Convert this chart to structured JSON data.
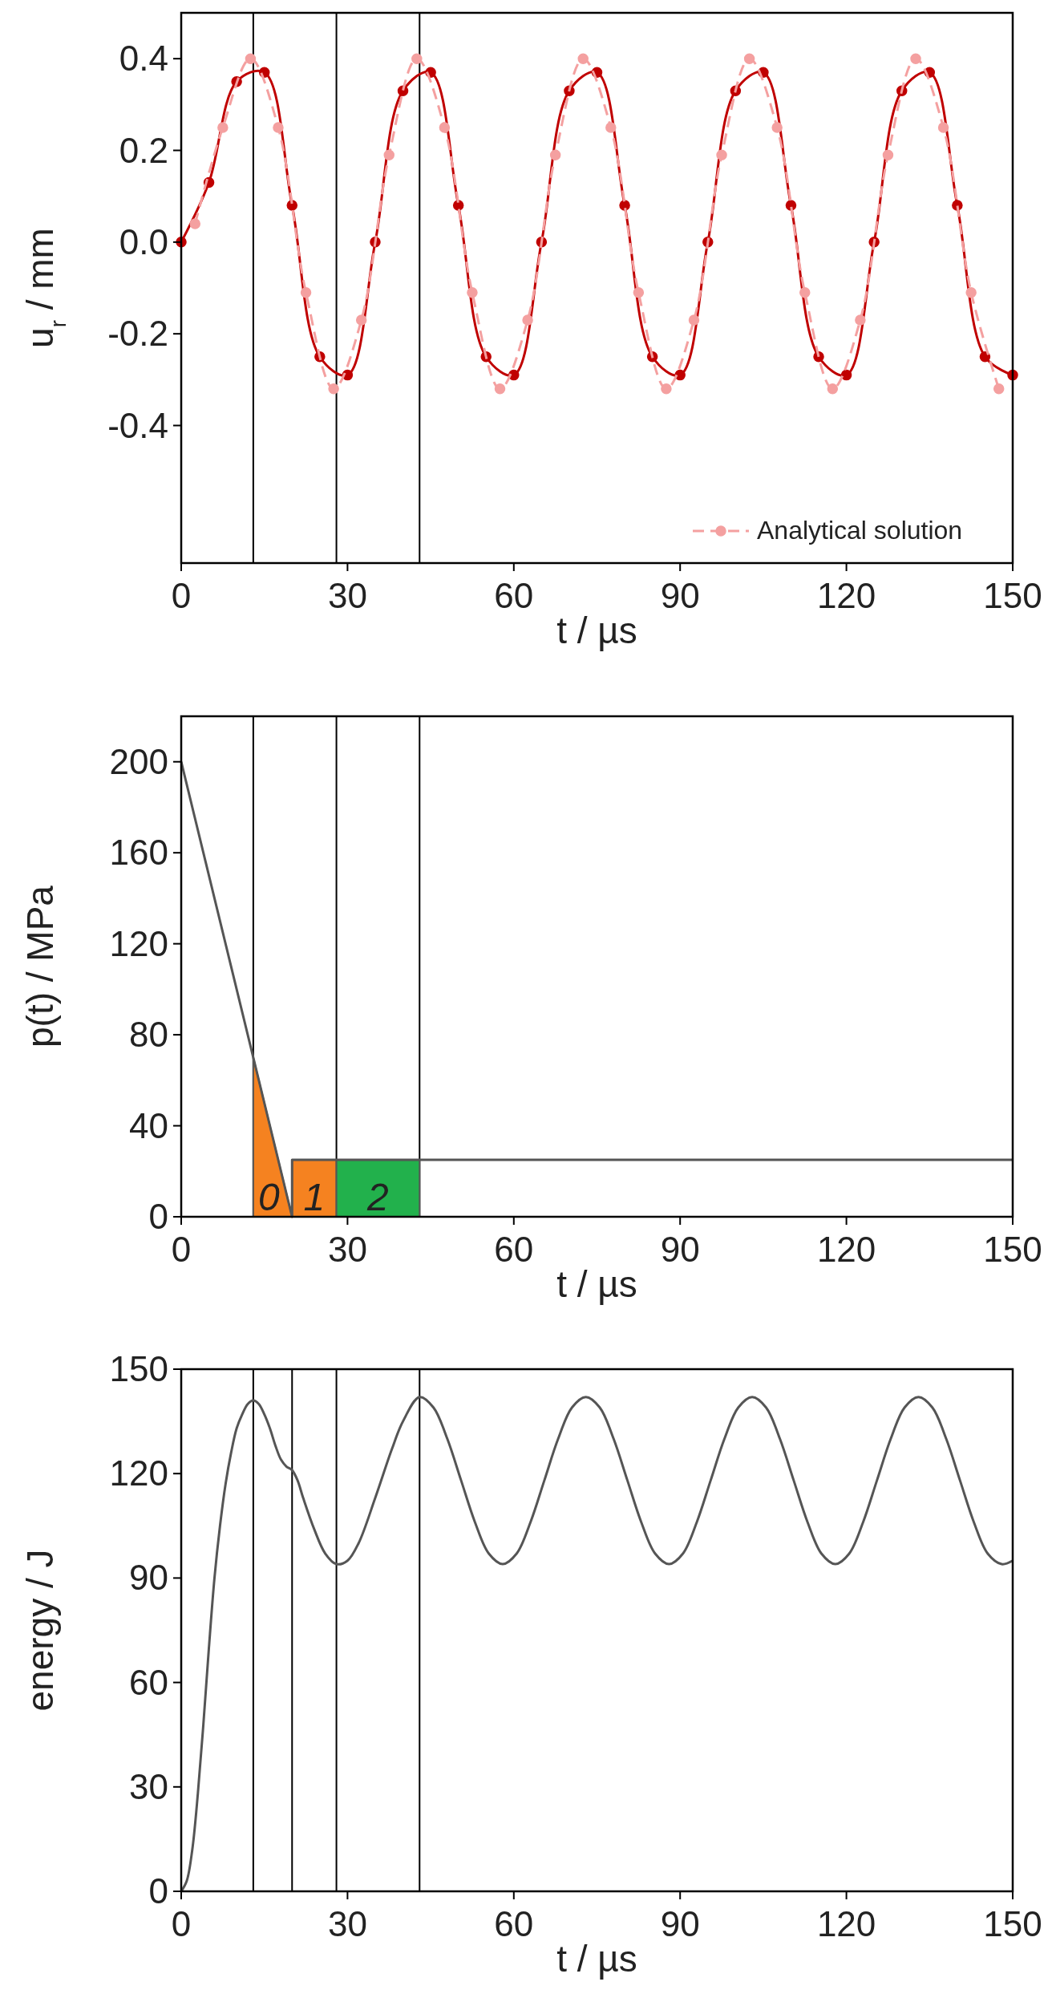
{
  "chart_data": [
    {
      "type": "line",
      "xlabel": "t / µs",
      "ylabel": "u$_{r}$ / mm",
      "xlim": [
        0,
        150
      ],
      "xticks": [
        0,
        30,
        60,
        90,
        120,
        150
      ],
      "ylim": [
        -0.7,
        0.5
      ],
      "yticks": [
        -0.4,
        -0.2,
        {
          "value": 0,
          "label": "0.0"
        },
        0.2,
        0.4
      ],
      "marker": "circle",
      "legend": "bottom right",
      "grid": false,
      "series": [
        {
          "color": "#c00000",
          "x": [
            0,
            5,
            10,
            15,
            20,
            25,
            30,
            35,
            40,
            45,
            50,
            55,
            60,
            65,
            70,
            75,
            80,
            85,
            90,
            95,
            100,
            105,
            110,
            115,
            120,
            125,
            130,
            135,
            140,
            145,
            150
          ],
          "values": [
            0,
            0.13,
            0.35,
            0.37,
            0.08,
            -0.25,
            -0.29,
            0.0,
            0.33,
            0.37,
            0.08,
            -0.25,
            -0.29,
            0.0,
            0.33,
            0.37,
            0.08,
            -0.25,
            -0.29,
            0.0,
            0.33,
            0.37,
            0.08,
            -0.25,
            -0.29,
            0.0,
            0.33,
            0.37,
            0.08,
            -0.25,
            -0.29
          ]
        },
        {
          "name": "Analytical solution",
          "color": "#f4a0a0",
          "line_style": "dashed",
          "x": [
            2.5,
            7.5,
            12.5,
            17.5,
            22.5,
            27.5,
            32.5,
            37.5,
            42.5,
            47.5,
            52.5,
            57.5,
            62.5,
            67.5,
            72.5,
            77.5,
            82.5,
            87.5,
            92.5,
            97.5,
            102.5,
            107.5,
            112.5,
            117.5,
            122.5,
            127.5,
            132.5,
            137.5,
            142.5,
            147.5
          ],
          "values": [
            0.04,
            0.25,
            0.4,
            0.25,
            -0.11,
            -0.32,
            -0.17,
            0.19,
            0.4,
            0.25,
            -0.11,
            -0.32,
            -0.17,
            0.19,
            0.4,
            0.25,
            -0.11,
            -0.32,
            -0.17,
            0.19,
            0.4,
            0.25,
            -0.11,
            -0.32,
            -0.17,
            0.19,
            0.4,
            0.25,
            -0.11,
            -0.32
          ]
        }
      ],
      "ref_lines": [
        {
          "axis": "x",
          "value": 13,
          "color": "#000000"
        },
        {
          "axis": "x",
          "value": 28,
          "color": "#000000"
        },
        {
          "axis": "x",
          "value": 43,
          "color": "#000000"
        }
      ]
    },
    {
      "type": "line",
      "xlabel": "t / µs",
      "ylabel": "p(t) / MPa",
      "xlim": [
        0,
        150
      ],
      "xticks": [
        0,
        30,
        60,
        90,
        120,
        150
      ],
      "ylim": [
        0,
        220
      ],
      "yticks": [
        0,
        40,
        80,
        120,
        160,
        200
      ],
      "grid": false,
      "series": [
        {
          "type": "area",
          "color": "#f58220",
          "x": [
            13,
            20
          ],
          "values": [
            70,
            0
          ]
        },
        {
          "type": "area",
          "color": "#f58220",
          "x": [
            20,
            28
          ],
          "values": [
            25,
            25
          ]
        },
        {
          "type": "area",
          "color": "#22b14c",
          "x": [
            28,
            43
          ],
          "values": [
            25,
            25
          ]
        },
        {
          "color": "#555555",
          "x": [
            0,
            20,
            20,
            150
          ],
          "values": [
            200,
            0,
            25,
            25
          ]
        }
      ],
      "ref_lines": [
        {
          "axis": "x",
          "value": 13,
          "color": "#000000"
        },
        {
          "axis": "x",
          "value": 28,
          "color": "#000000"
        },
        {
          "axis": "x",
          "value": 43,
          "color": "#000000"
        }
      ],
      "annotations": [
        "0",
        "1",
        "2"
      ]
    },
    {
      "type": "line",
      "xlabel": "t / µs",
      "ylabel": "energy / J",
      "xlim": [
        0,
        150
      ],
      "xticks": [
        0,
        30,
        60,
        90,
        120,
        150
      ],
      "ylim": [
        0,
        150
      ],
      "yticks": [
        0,
        30,
        60,
        90,
        120,
        150
      ],
      "grid": false,
      "series": [
        {
          "color": "#555555",
          "x": [
            0,
            1,
            2,
            3,
            4,
            5,
            6,
            7,
            8,
            9,
            10,
            11,
            12,
            13,
            14,
            15,
            16,
            17,
            18,
            19,
            20,
            21,
            22,
            24,
            26,
            28,
            30,
            32,
            35,
            38,
            40,
            43,
            45.5,
            48,
            50.5,
            53,
            55.5,
            58,
            60.5,
            63,
            65.5,
            68,
            70.5,
            73,
            75.5,
            78,
            80.5,
            83,
            85.5,
            88,
            90.5,
            93,
            95.5,
            98,
            100.5,
            103,
            105.5,
            108,
            110.5,
            113,
            115.5,
            118,
            120.5,
            123,
            125.5,
            128,
            130.5,
            133,
            135.5,
            138,
            140.5,
            143,
            145.5,
            148,
            150
          ],
          "values": [
            0,
            3,
            12,
            28,
            48,
            70,
            90,
            105,
            117,
            126,
            133,
            137,
            140,
            141,
            140,
            137,
            133,
            128,
            124,
            122,
            121,
            118,
            113,
            104,
            97,
            94,
            95,
            100,
            113,
            127,
            135,
            142,
            139,
            130,
            118,
            106,
            97,
            94,
            97,
            106,
            118,
            130,
            139,
            142,
            139,
            130,
            118,
            106,
            97,
            94,
            97,
            106,
            118,
            130,
            139,
            142,
            139,
            130,
            118,
            106,
            97,
            94,
            97,
            106,
            118,
            130,
            139,
            142,
            139,
            130,
            118,
            106,
            97,
            94,
            95
          ]
        }
      ],
      "ref_lines": [
        {
          "axis": "x",
          "value": 13,
          "color": "#000000"
        },
        {
          "axis": "x",
          "value": 20,
          "color": "#000000"
        },
        {
          "axis": "x",
          "value": 28,
          "color": "#000000"
        },
        {
          "axis": "x",
          "value": 43,
          "color": "#000000"
        }
      ]
    }
  ]
}
